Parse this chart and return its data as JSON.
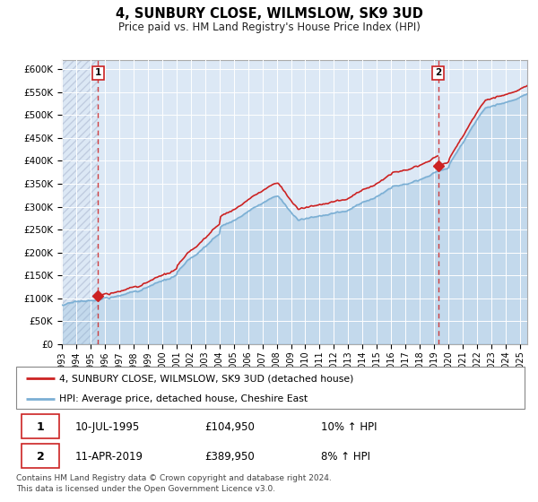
{
  "title": "4, SUNBURY CLOSE, WILMSLOW, SK9 3UD",
  "subtitle": "Price paid vs. HM Land Registry's House Price Index (HPI)",
  "ylim": [
    0,
    620000
  ],
  "yticks": [
    0,
    50000,
    100000,
    150000,
    200000,
    250000,
    300000,
    350000,
    400000,
    450000,
    500000,
    550000,
    600000
  ],
  "ytick_labels": [
    "£0",
    "£50K",
    "£100K",
    "£150K",
    "£200K",
    "£250K",
    "£300K",
    "£350K",
    "£400K",
    "£450K",
    "£500K",
    "£550K",
    "£600K"
  ],
  "sale1_date": 1995.53,
  "sale1_price": 104950,
  "sale2_date": 2019.27,
  "sale2_price": 389950,
  "sale1_label": "1",
  "sale2_label": "2",
  "hpi_line_color": "#7bafd4",
  "sale_line_color": "#cc2222",
  "marker_color": "#cc2222",
  "vline_color": "#cc2222",
  "bg_color": "#dce8f5",
  "hatch_color": "#c0cce0",
  "legend_sale": "4, SUNBURY CLOSE, WILMSLOW, SK9 3UD (detached house)",
  "legend_hpi": "HPI: Average price, detached house, Cheshire East",
  "table_row1": [
    "1",
    "10-JUL-1995",
    "£104,950",
    "10% ↑ HPI"
  ],
  "table_row2": [
    "2",
    "11-APR-2019",
    "£389,950",
    "8% ↑ HPI"
  ],
  "footnote": "Contains HM Land Registry data © Crown copyright and database right 2024.\nThis data is licensed under the Open Government Licence v3.0.",
  "xmin": 1993.0,
  "xmax": 2025.5,
  "xticks": [
    1993,
    1994,
    1995,
    1996,
    1997,
    1998,
    1999,
    2000,
    2001,
    2002,
    2003,
    2004,
    2005,
    2006,
    2007,
    2008,
    2009,
    2010,
    2011,
    2012,
    2013,
    2014,
    2015,
    2016,
    2017,
    2018,
    2019,
    2020,
    2021,
    2022,
    2023,
    2024,
    2025
  ]
}
